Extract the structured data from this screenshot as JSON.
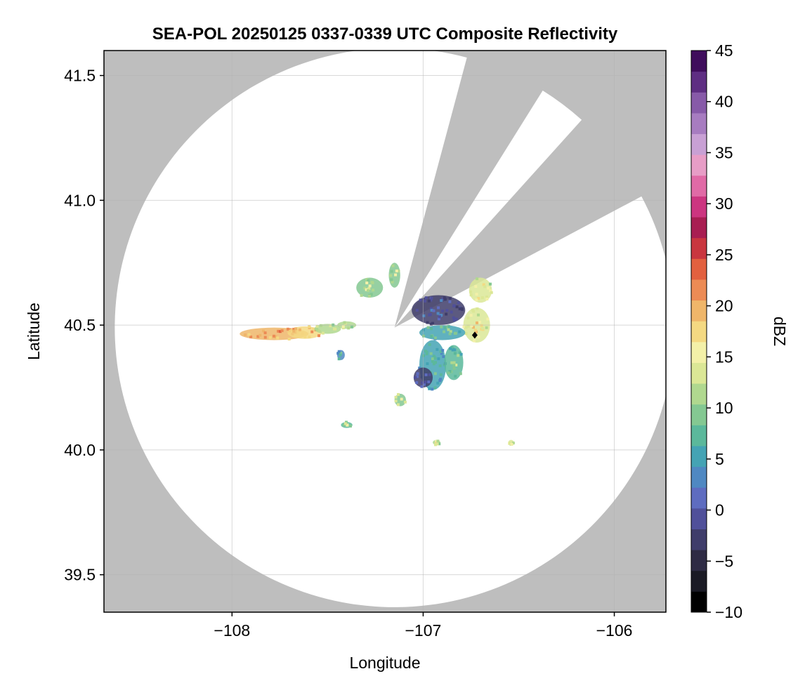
{
  "chart_data": {
    "type": "heatmap",
    "title": "SEA-POL 20250125 0337-0339 UTC Composite Reflectivity",
    "xlabel": "Longitude",
    "ylabel": "Latitude",
    "xlim": [
      -108.67,
      -105.73
    ],
    "ylim": [
      39.35,
      41.6
    ],
    "xticks": [
      -108,
      -107,
      -106
    ],
    "xtick_labels": [
      "−108",
      "−107",
      "−106"
    ],
    "yticks": [
      39.5,
      40.0,
      40.5,
      41.0,
      41.5
    ],
    "ytick_labels": [
      "39.5",
      "40.0",
      "40.5",
      "41.0",
      "41.5"
    ],
    "grid": true,
    "radar": {
      "center_lon": -107.15,
      "center_lat": 40.49,
      "range_lat_deg": 1.12,
      "blocked_sectors_az_deg": [
        [
          15,
          32
        ],
        [
          42,
          62
        ]
      ],
      "site_marker": {
        "lon": -106.73,
        "lat": 40.46
      }
    },
    "colorbar": {
      "label": "dBZ",
      "min": -10,
      "max": 45,
      "ticks": [
        -10,
        -5,
        0,
        5,
        10,
        15,
        20,
        25,
        30,
        35,
        40,
        45
      ],
      "tick_labels": [
        "−10",
        "−5",
        "0",
        "5",
        "10",
        "15",
        "20",
        "25",
        "30",
        "35",
        "40",
        "45"
      ],
      "colors": [
        "#000000",
        "#1a1a24",
        "#2e2b44",
        "#3f3d6a",
        "#50509a",
        "#5e6cc0",
        "#4f88c2",
        "#44a3b4",
        "#5bb89b",
        "#84c892",
        "#b0d88f",
        "#dbe796",
        "#f3f0a8",
        "#f4d982",
        "#efb66a",
        "#ec8b55",
        "#e2603f",
        "#c9363f",
        "#a81e52",
        "#cc3580",
        "#e06aa6",
        "#e79dc6",
        "#c8a0d4",
        "#a77cc0",
        "#875aa8",
        "#5e2e82",
        "#3f0d5c"
      ]
    },
    "echoes": [
      {
        "lon": -107.78,
        "lat": 40.465,
        "dlon": 0.18,
        "dlat": 0.025,
        "dbz": 22
      },
      {
        "lon": -107.62,
        "lat": 40.47,
        "dlon": 0.09,
        "dlat": 0.025,
        "dbz": 21
      },
      {
        "lon": -107.5,
        "lat": 40.485,
        "dlon": 0.07,
        "dlat": 0.02,
        "dbz": 15
      },
      {
        "lon": -107.4,
        "lat": 40.5,
        "dlon": 0.05,
        "dlat": 0.015,
        "dbz": 14
      },
      {
        "lon": -107.28,
        "lat": 40.65,
        "dlon": 0.07,
        "dlat": 0.04,
        "dbz": 13
      },
      {
        "lon": -107.15,
        "lat": 40.7,
        "dlon": 0.03,
        "dlat": 0.05,
        "dbz": 13
      },
      {
        "lon": -106.92,
        "lat": 40.56,
        "dlon": 0.14,
        "dlat": 0.06,
        "dbz": 1
      },
      {
        "lon": -106.72,
        "lat": 40.5,
        "dlon": 0.07,
        "dlat": 0.07,
        "dbz": 16
      },
      {
        "lon": -106.7,
        "lat": 40.64,
        "dlon": 0.06,
        "dlat": 0.05,
        "dbz": 16
      },
      {
        "lon": -106.9,
        "lat": 40.47,
        "dlon": 0.12,
        "dlat": 0.03,
        "dbz": 9
      },
      {
        "lon": -106.95,
        "lat": 40.34,
        "dlon": 0.07,
        "dlat": 0.1,
        "dbz": 8
      },
      {
        "lon": -106.84,
        "lat": 40.35,
        "dlon": 0.05,
        "dlat": 0.07,
        "dbz": 10
      },
      {
        "lon": -107.0,
        "lat": 40.29,
        "dlon": 0.05,
        "dlat": 0.04,
        "dbz": 1
      },
      {
        "lon": -107.12,
        "lat": 40.2,
        "dlon": 0.03,
        "dlat": 0.025,
        "dbz": 13
      },
      {
        "lon": -107.43,
        "lat": 40.38,
        "dlon": 0.02,
        "dlat": 0.02,
        "dbz": 7
      },
      {
        "lon": -107.4,
        "lat": 40.1,
        "dlon": 0.03,
        "dlat": 0.012,
        "dbz": 11
      },
      {
        "lon": -106.93,
        "lat": 40.03,
        "dlon": 0.02,
        "dlat": 0.01,
        "dbz": 15
      },
      {
        "lon": -106.54,
        "lat": 40.03,
        "dlon": 0.015,
        "dlat": 0.01,
        "dbz": 16
      }
    ]
  },
  "colors": {
    "no_coverage": "#bebebe",
    "coverage": "#ffffff",
    "grid": "#b4b4b4"
  }
}
